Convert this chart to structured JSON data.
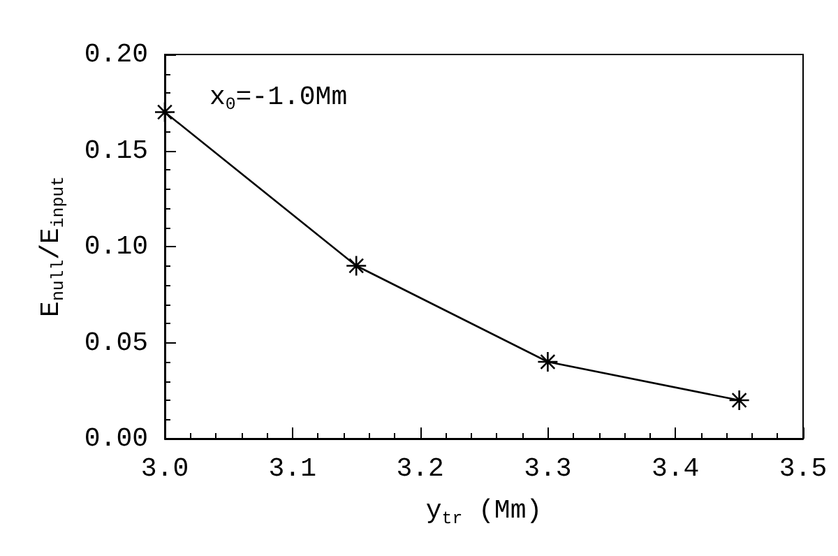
{
  "chart_data": {
    "type": "line",
    "xlabel": "y$_{tr}$ (Mm)",
    "ylabel": "E$_{null}$/E$_{input}$",
    "annotations": [
      "x$_{0}$=-1.0Mm"
    ],
    "x": [
      3.0,
      3.15,
      3.3,
      3.45
    ],
    "series": [
      {
        "color": "#000000",
        "values": [
          0.17,
          0.09,
          0.04,
          0.02
        ]
      }
    ],
    "xlim": [
      3.0,
      3.5
    ],
    "xticks": [
      {
        "value": 3.0,
        "label": "3.0"
      },
      3.1,
      3.2,
      3.3,
      3.4,
      3.5
    ],
    "ylim": [
      0,
      0.2
    ],
    "yticks": [
      {
        "value": 0,
        "label": "0.00"
      },
      {
        "value": 0.05,
        "label": "0.05"
      },
      {
        "value": 0.1,
        "label": "0.10"
      },
      {
        "value": 0.15,
        "label": "0.15"
      },
      {
        "value": 0.2,
        "label": "0.20"
      }
    ],
    "grid": false,
    "marker": "cross",
    "line_style": "solid"
  }
}
